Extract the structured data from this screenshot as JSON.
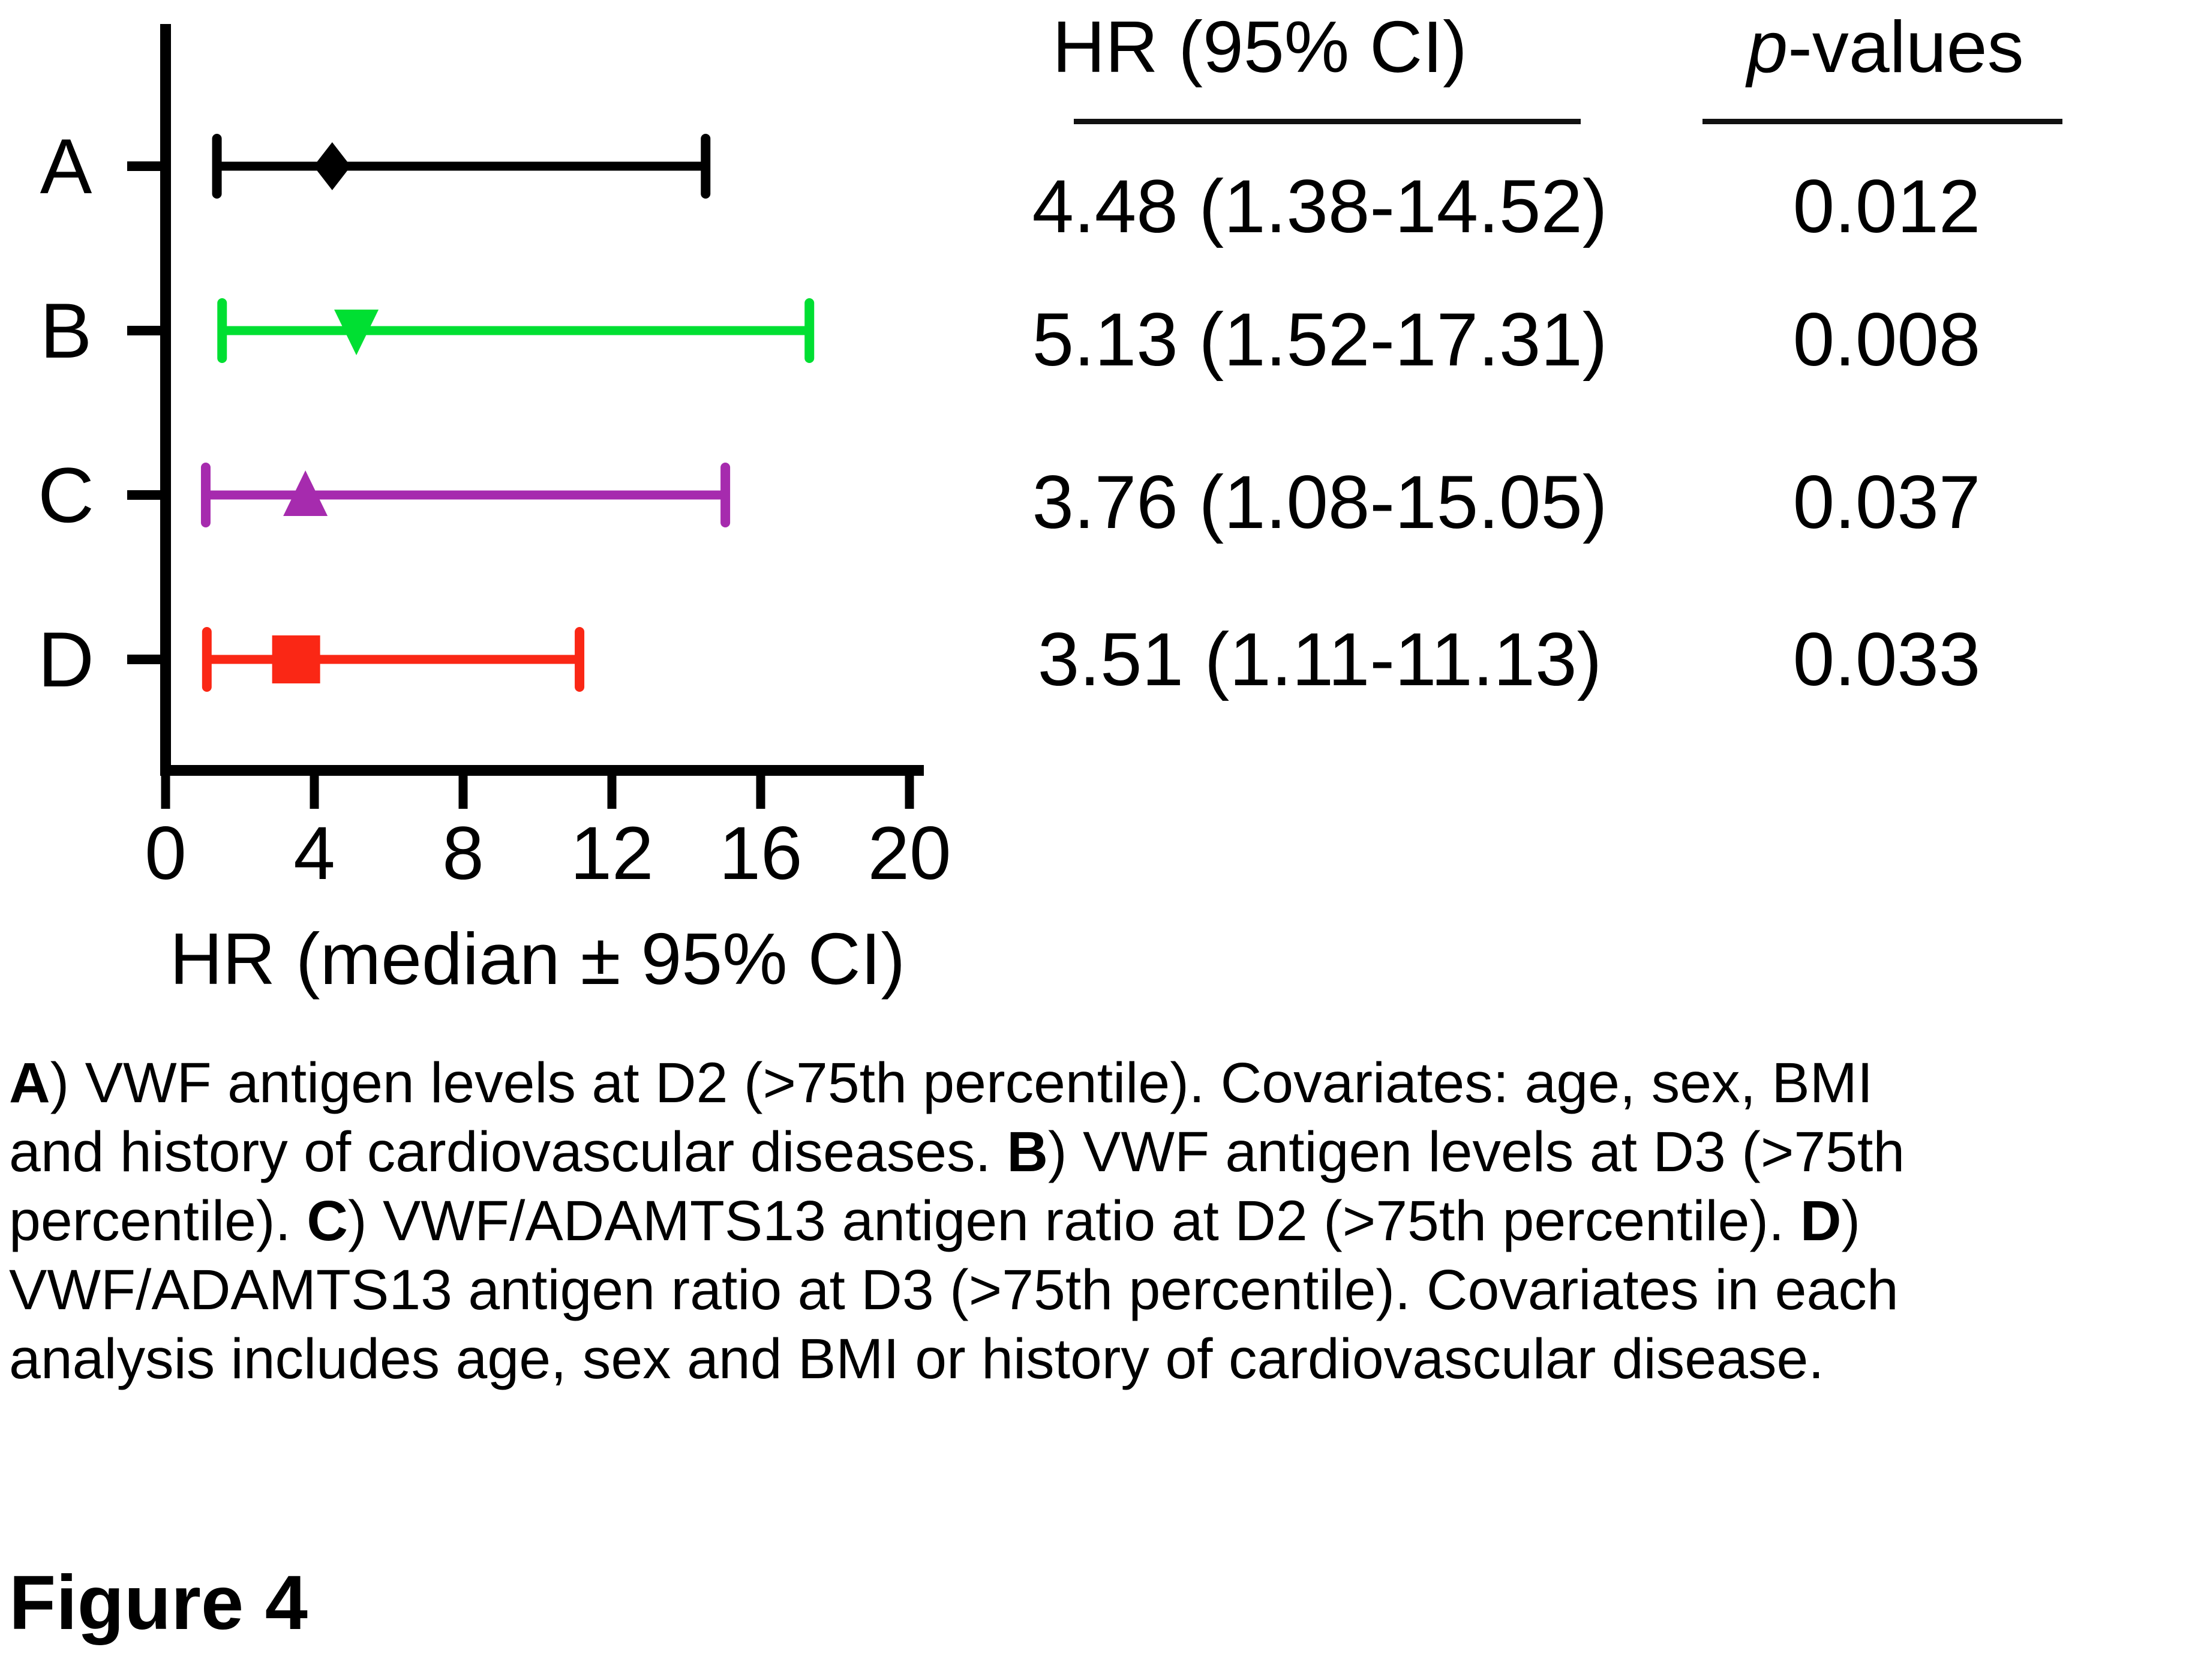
{
  "figure_label": "Figure 4",
  "table": {
    "col1_header": "HR (95% CI)",
    "col2_header": {
      "italic": "p",
      "rest": "-values"
    },
    "rows": [
      {
        "hr_ci": "4.48 (1.38-14.52)",
        "p": "0.012"
      },
      {
        "hr_ci": "5.13 (1.52-17.31)",
        "p": "0.008"
      },
      {
        "hr_ci": "3.76 (1.08-15.05)",
        "p": "0.037"
      },
      {
        "hr_ci": "3.51 (1.11-11.13)",
        "p": "0.033"
      }
    ]
  },
  "chart_data": {
    "type": "forest",
    "xlabel": "HR (median ± 95% CI)",
    "xlim": [
      0,
      20
    ],
    "x_ticks": [
      0,
      4,
      8,
      12,
      16,
      20
    ],
    "grid": false,
    "rows": [
      {
        "label": "A",
        "hr": 4.48,
        "ci_low": 1.38,
        "ci_high": 14.52,
        "p_value": 0.012,
        "marker": "diamond",
        "color": "#000000"
      },
      {
        "label": "B",
        "hr": 5.13,
        "ci_low": 1.52,
        "ci_high": 17.31,
        "p_value": 0.008,
        "marker": "triangle-down",
        "color": "#00DF32"
      },
      {
        "label": "C",
        "hr": 3.76,
        "ci_low": 1.08,
        "ci_high": 15.05,
        "p_value": 0.037,
        "marker": "triangle-up",
        "color": "#A62BAE"
      },
      {
        "label": "D",
        "hr": 3.51,
        "ci_low": 1.11,
        "ci_high": 11.13,
        "p_value": 0.033,
        "marker": "square",
        "color": "#FA2715"
      }
    ]
  },
  "caption": {
    "lines": [
      [
        {
          "b": "A"
        },
        {
          "t": ") VWF antigen levels at D2 (>75th percentile). Covariates: age, sex, BMI"
        }
      ],
      [
        {
          "t": "and history of cardiovascular diseases. "
        },
        {
          "b": "B"
        },
        {
          "t": ") VWF antigen levels at D3 (>75th"
        }
      ],
      [
        {
          "t": "percentile). "
        },
        {
          "b": "C"
        },
        {
          "t": ") VWF/ADAMTS13 antigen ratio at D2 (>75th percentile). "
        },
        {
          "b": "D"
        },
        {
          "t": ")"
        }
      ],
      [
        {
          "t": "VWF/ADAMTS13 antigen ratio at D3 (>75th percentile). Covariates in each"
        }
      ],
      [
        {
          "t": "analysis includes age, sex and BMI or history of cardiovascular disease."
        }
      ]
    ]
  }
}
